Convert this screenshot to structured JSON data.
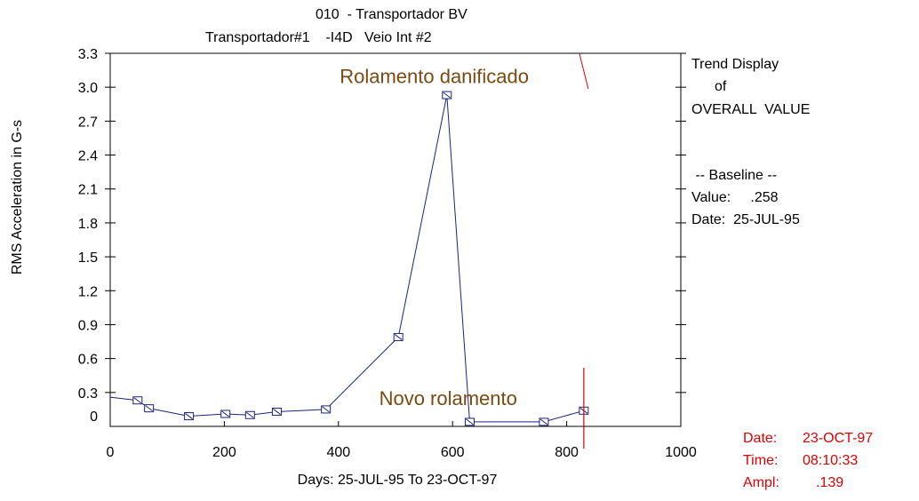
{
  "header": {
    "title": "010  - Transportador BV",
    "subtitle": "Transportador#1    -I4D   Veio Int #2"
  },
  "side_panel": {
    "line1": "Trend Display",
    "line2": "of",
    "line3": "OVERALL  VALUE",
    "baseline_header": " -- Baseline --",
    "baseline_value": "Value:     .258",
    "baseline_date": "Date:  25-JUL-95"
  },
  "cursor_readout": {
    "date_label": "Date:",
    "date_value": "23-OCT-97",
    "time_label": "Time:",
    "time_value": "08:10:33",
    "ampl_label": "Ampl:",
    "ampl_value": ".139"
  },
  "colors": {
    "series": "#1a237e",
    "annotation": "#7a4a10",
    "cursor": "#e00000"
  },
  "chart_data": {
    "type": "line",
    "title": "010  - Transportador BV",
    "xlabel": "Days:  25-JUL-95  To  23-OCT-97",
    "ylabel": "RMS Acceleration in G-s",
    "xlim": [
      0,
      1000
    ],
    "ylim": [
      0,
      3.3
    ],
    "x_ticks": [
      0,
      200,
      400,
      600,
      800,
      1000
    ],
    "y_ticks": [
      0,
      0.3,
      0.6,
      0.9,
      1.2,
      1.5,
      1.8,
      2.1,
      2.4,
      2.7,
      3.0,
      3.3
    ],
    "x_tick_labels": [
      "0",
      "200",
      "400",
      "600",
      "800",
      "1000"
    ],
    "y_tick_labels": [
      "0",
      "0.3",
      "0.6",
      "0.9",
      "1.2",
      "1.5",
      "1.8",
      "2.1",
      "2.4",
      "2.7",
      "3.0",
      "3.3"
    ],
    "grid": false,
    "series": [
      {
        "x": [
          0,
          48,
          68,
          138,
          202,
          245,
          292,
          378,
          505,
          590,
          630,
          760,
          830
        ],
        "y": [
          0.258,
          0.23,
          0.16,
          0.09,
          0.11,
          0.1,
          0.13,
          0.15,
          0.79,
          2.93,
          0.04,
          0.04,
          0.139
        ]
      }
    ],
    "cursor_x": 830,
    "annotations": [
      {
        "text": "Rolamento  danificado",
        "x": 505,
        "y": 3.1
      },
      {
        "text": "Novo rolamento",
        "x": 652,
        "y": 0.25
      }
    ]
  }
}
